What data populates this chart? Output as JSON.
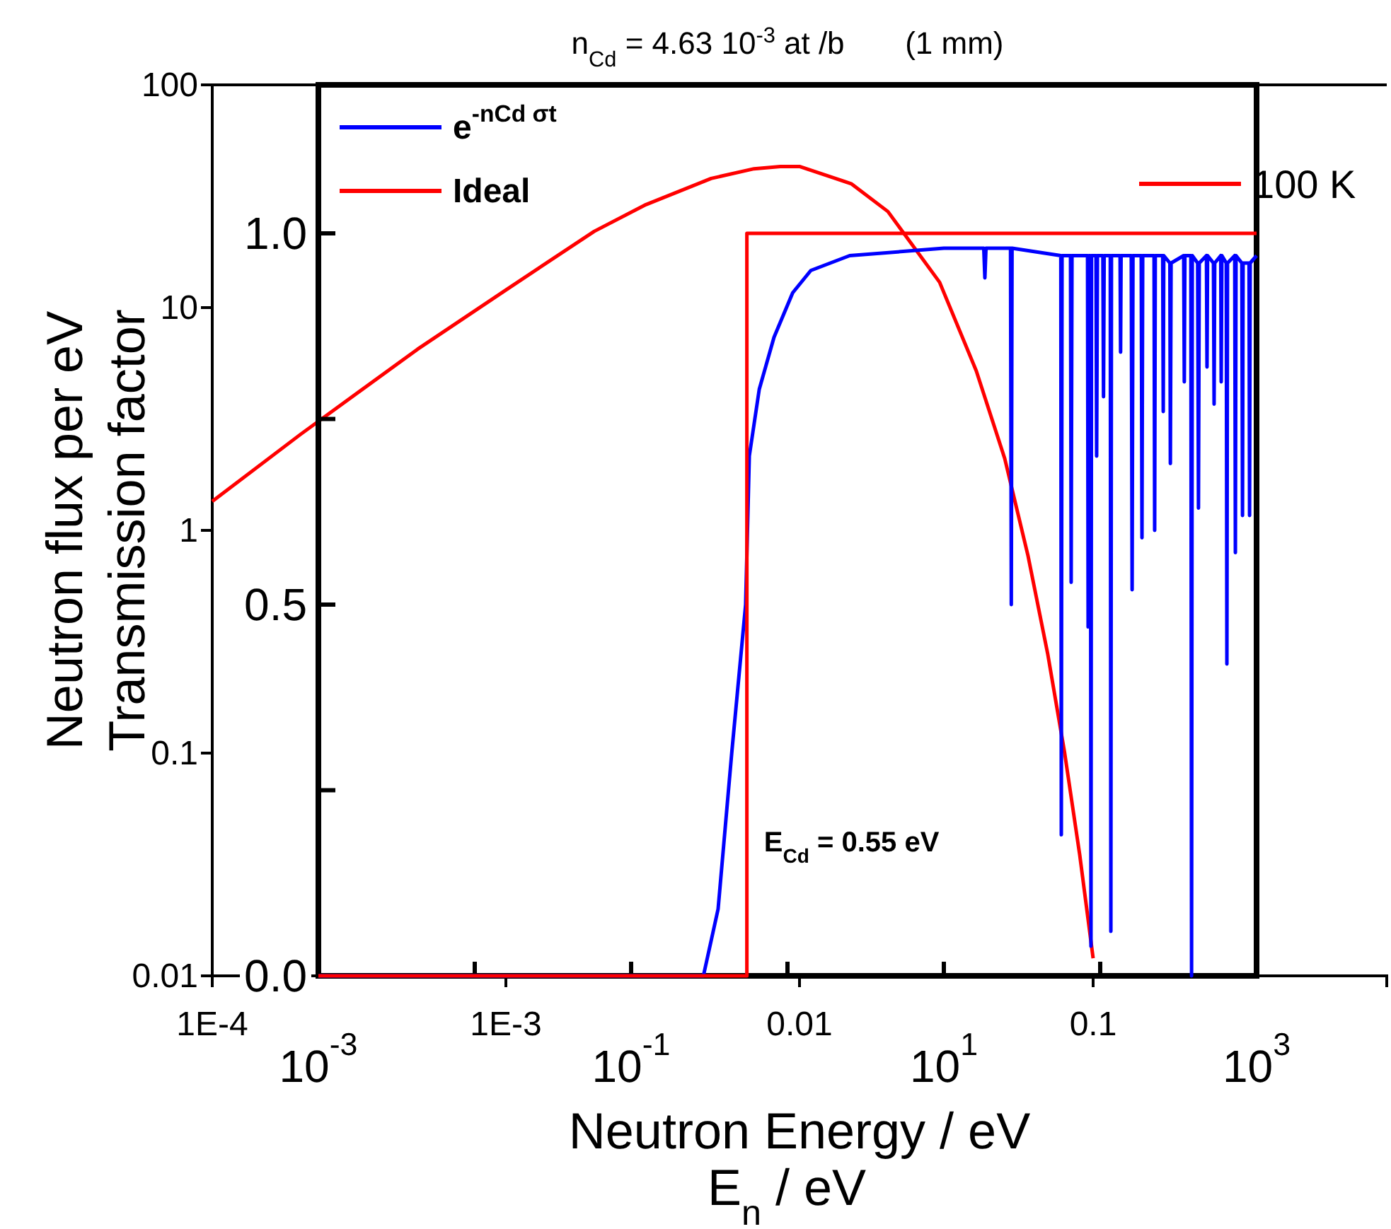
{
  "chart_data": [
    {
      "type": "line",
      "xlabel": "Neutron Energy / eV",
      "ylabel": "Neutron flux per eV",
      "log": "xy",
      "xlim": [
        0.0001,
        1
      ],
      "xticks": [
        {
          "value": 0.0001,
          "label": "1E-4"
        },
        {
          "value": 0.001,
          "label": "1E-3"
        },
        0.01,
        0.1
      ],
      "ylim": [
        0.01,
        100
      ],
      "yticks": [
        0.01,
        0.1,
        1,
        10,
        100
      ],
      "legend": "top right",
      "x": [
        0.0001,
        0.0002,
        0.0005,
        0.001,
        0.002,
        0.003,
        0.005,
        0.007,
        0.0086,
        0.01,
        0.015,
        0.02,
        0.03,
        0.04,
        0.05,
        0.06,
        0.07,
        0.08,
        0.09,
        0.1
      ],
      "series": [
        {
          "name": "100 K",
          "color": "#ff0000",
          "values": [
            1.35,
            2.7,
            6.5,
            12,
            22,
            29,
            38,
            42,
            43,
            43,
            36,
            27,
            13,
            5.2,
            2.1,
            0.77,
            0.28,
            0.1,
            0.035,
            0.012
          ]
        }
      ]
    },
    {
      "type": "line",
      "title": "n$_{Cd}$ = 4.63 10$^{-3}$ at /b       (1 mm)",
      "xlabel": "E$_{n}$ / eV",
      "ylabel": "Transmission factor",
      "annotations": [
        "E$_{Cd}$ = 0.55 eV"
      ],
      "log": "x",
      "xlim": [
        0.001,
        1000
      ],
      "xticks": [
        {
          "value": 0.001,
          "label": "10$^{-3}$"
        },
        {
          "value": 0.01,
          "label": null
        },
        {
          "value": 0.1,
          "label": "10$^{-1}$"
        },
        {
          "value": 1,
          "label": null
        },
        {
          "value": 10,
          "label": "10$^{1}$"
        },
        {
          "value": 100,
          "label": null
        },
        {
          "value": 1000,
          "label": "10$^{3}$"
        }
      ],
      "ylim": [
        0,
        1.2
      ],
      "yticks": [
        {
          "value": 0,
          "label": "0.0"
        },
        {
          "value": 0.25,
          "label": null
        },
        {
          "value": 0.5,
          "label": "0.5"
        },
        {
          "value": 0.75,
          "label": null
        },
        {
          "value": 1,
          "label": "1.0"
        }
      ],
      "legend": "top left",
      "series": [
        {
          "name": "e$^{-nCd σt}$",
          "color": "#0000ff",
          "x": [
            0.001,
            0.29,
            0.36,
            0.44,
            0.54,
            0.57,
            0.66,
            0.82,
            1.08,
            1.41,
            2.5,
            10,
            18,
            18.3,
            18.6,
            26.7,
            27,
            27.3,
            56,
            56.4,
            57,
            64.6,
            65.2,
            66,
            83,
            83.7,
            85,
            86.5,
            87.3,
            88,
            94,
            94.9,
            96,
            104,
            105,
            106,
            116,
            117,
            118,
            134,
            135,
            136,
            158,
            160,
            162,
            183,
            185,
            187,
            221,
            223,
            225,
            251,
            253,
            255,
            279,
            281,
            284,
            342,
            345,
            348,
            380,
            384,
            388,
            420,
            425,
            430,
            478,
            482,
            486,
            530,
            535,
            540,
            590,
            594,
            600,
            640,
            646,
            652,
            725,
            732,
            739,
            805,
            813,
            820,
            895,
            902,
            910,
            1000
          ],
          "values": [
            0,
            0,
            0.09,
            0.3,
            0.5,
            0.7,
            0.79,
            0.86,
            0.92,
            0.95,
            0.97,
            0.98,
            0.98,
            0.94,
            0.98,
            0.98,
            0.5,
            0.98,
            0.97,
            0.19,
            0.97,
            0.97,
            0.53,
            0.97,
            0.97,
            0.47,
            0.97,
            0.97,
            0.04,
            0.97,
            0.97,
            0.7,
            0.97,
            0.97,
            0.78,
            0.97,
            0.97,
            0.06,
            0.97,
            0.97,
            0.84,
            0.97,
            0.97,
            0.52,
            0.97,
            0.97,
            0.59,
            0.97,
            0.97,
            0.6,
            0.97,
            0.97,
            0.76,
            0.97,
            0.96,
            0.69,
            0.96,
            0.97,
            0.8,
            0.97,
            0.97,
            0,
            0.97,
            0.96,
            0.63,
            0.96,
            0.97,
            0.82,
            0.97,
            0.96,
            0.77,
            0.96,
            0.97,
            0.8,
            0.97,
            0.96,
            0.42,
            0.96,
            0.97,
            0.57,
            0.97,
            0.96,
            0.62,
            0.96,
            0.96,
            0.62,
            0.96,
            0.97
          ]
        },
        {
          "name": "Ideal",
          "color": "#ff0000",
          "x": [
            0.001,
            0.55,
            0.55,
            1000
          ],
          "values": [
            0,
            0,
            1,
            1
          ]
        }
      ]
    }
  ]
}
